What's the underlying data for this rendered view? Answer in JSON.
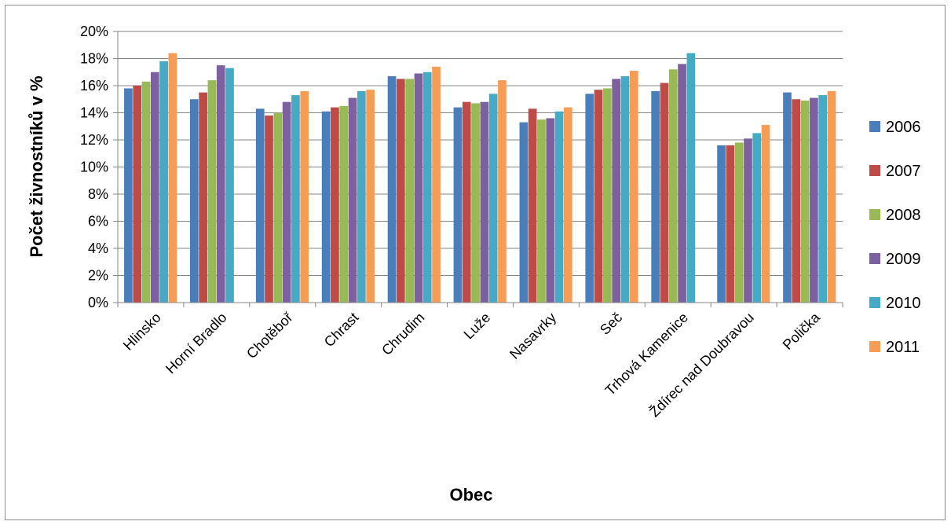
{
  "chart_data": {
    "type": "bar",
    "title": "",
    "xlabel": "Obec",
    "ylabel": "Počet živnostníků v %",
    "ylim": [
      0,
      20
    ],
    "yticks": [
      "0%",
      "2%",
      "4%",
      "6%",
      "8%",
      "10%",
      "12%",
      "14%",
      "16%",
      "18%",
      "20%"
    ],
    "grid": true,
    "legend_position": "right",
    "categories": [
      "Hlinsko",
      "Horní Bradlo",
      "Chotěboř",
      "Chrast",
      "Chrudim",
      "Luže",
      "Nasavrky",
      "Seč",
      "Trhová Kamenice",
      "Ždírec nad Doubravou",
      "Polička"
    ],
    "series": [
      {
        "name": "2006",
        "color": "#4a7ebb",
        "values": [
          15.8,
          15.0,
          14.3,
          14.1,
          16.7,
          14.4,
          13.3,
          15.4,
          15.6,
          11.6,
          15.5
        ]
      },
      {
        "name": "2007",
        "color": "#be4b48",
        "values": [
          16.0,
          15.5,
          13.8,
          14.4,
          16.5,
          14.8,
          14.3,
          15.7,
          16.2,
          11.6,
          15.0
        ]
      },
      {
        "name": "2008",
        "color": "#98b954",
        "values": [
          16.3,
          16.4,
          14.0,
          14.5,
          16.5,
          14.7,
          13.5,
          15.8,
          17.2,
          11.8,
          14.9
        ]
      },
      {
        "name": "2009",
        "color": "#7d60a0",
        "values": [
          17.0,
          17.5,
          14.8,
          15.1,
          16.9,
          14.8,
          13.6,
          16.5,
          17.6,
          12.1,
          15.1
        ]
      },
      {
        "name": "2010",
        "color": "#46aac5",
        "values": [
          17.8,
          17.3,
          15.3,
          15.6,
          17.0,
          15.4,
          14.1,
          16.7,
          18.4,
          12.5,
          15.3
        ]
      },
      {
        "name": "2011",
        "color": "#f59d56",
        "values": [
          18.4,
          null,
          15.6,
          15.7,
          17.4,
          16.4,
          14.4,
          17.1,
          null,
          13.1,
          15.6
        ]
      }
    ]
  }
}
